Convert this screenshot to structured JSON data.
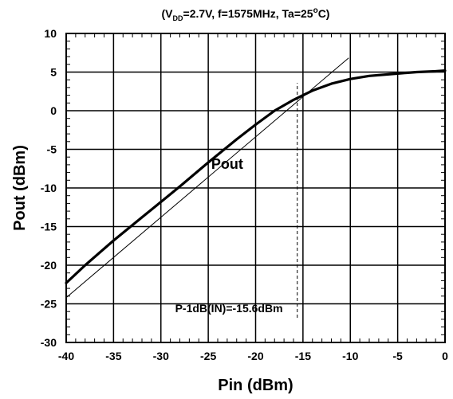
{
  "chart_data": {
    "type": "line",
    "title": {
      "prefix": "(V",
      "subscript": "DD",
      "middle": "=2.7V, f=1575MHz, Ta=25",
      "superscript": "o",
      "suffix": "C)"
    },
    "xlabel": "Pin (dBm)",
    "ylabel": "Pout (dBm)",
    "xlim": [
      -40,
      0
    ],
    "ylim": [
      -30,
      10
    ],
    "xticks": [
      -40,
      -35,
      -30,
      -25,
      -20,
      -15,
      -10,
      -5,
      0
    ],
    "yticks": [
      -30,
      -25,
      -20,
      -15,
      -10,
      -5,
      0,
      5,
      10
    ],
    "xtick_labels": [
      "-40",
      "-35",
      "-30",
      "-25",
      "-20",
      "-15",
      "-10",
      "-5",
      "0"
    ],
    "ytick_labels": [
      "-30",
      "-25",
      "-20",
      "-15",
      "-10",
      "-5",
      "0",
      "5",
      "10"
    ],
    "grid": true,
    "series": [
      {
        "name": "Pout",
        "style": "thick",
        "x": [
          -40,
          -38,
          -35,
          -32,
          -30,
          -28,
          -25,
          -22,
          -20,
          -18,
          -16,
          -15,
          -14,
          -12,
          -10,
          -8,
          -5,
          -3,
          -1,
          0
        ],
        "y": [
          -22.3,
          -20.0,
          -16.8,
          -13.8,
          -11.8,
          -9.8,
          -6.7,
          -3.7,
          -1.8,
          0.0,
          1.4,
          2.0,
          2.6,
          3.5,
          4.1,
          4.5,
          4.8,
          5.0,
          5.1,
          5.2
        ]
      },
      {
        "style": "thin",
        "x": [
          -40,
          -10.2
        ],
        "y": [
          -24.2,
          6.8
        ]
      }
    ],
    "annotations": {
      "series_label": "Pout",
      "series_label_at": [
        -23,
        -7.5
      ],
      "vline_x": -15.6,
      "vline_y": [
        -26.8,
        3.6
      ],
      "p1db_label": "P-1dB(IN)=-15.6dBm",
      "p1db_label_at": [
        -28.5,
        -26.1
      ]
    },
    "colors": {
      "line": "#000000",
      "grid": "#000000",
      "background": "#ffffff"
    }
  }
}
